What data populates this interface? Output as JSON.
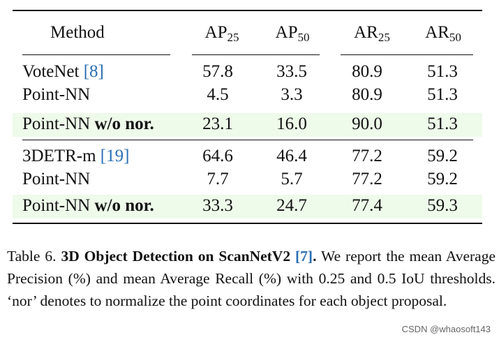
{
  "table": {
    "header": {
      "method": "Method",
      "ap25": {
        "base": "AP",
        "sub": "25"
      },
      "ap50": {
        "base": "AP",
        "sub": "50"
      },
      "ar25": {
        "base": "AR",
        "sub": "25"
      },
      "ar50": {
        "base": "AR",
        "sub": "50"
      }
    },
    "groups": [
      {
        "rows": [
          {
            "method": "VoteNet",
            "cite": "[8]",
            "ap25": "57.8",
            "ap50": "33.5",
            "ar25": "80.9",
            "ar50": "51.3"
          },
          {
            "method": "Point-NN",
            "ap25": "4.5",
            "ap50": "3.3",
            "ar25": "80.9",
            "ar50": "51.3"
          },
          {
            "method": "Point-NN",
            "method_bold": "w/o nor.",
            "ap25": "23.1",
            "ap50": "16.0",
            "ar25": "90.0",
            "ar50": "51.3"
          }
        ]
      },
      {
        "rows": [
          {
            "method": "3DETR-m",
            "cite": "[19]",
            "ap25": "64.6",
            "ap50": "46.4",
            "ar25": "77.2",
            "ar50": "59.2"
          },
          {
            "method": "Point-NN",
            "ap25": "7.7",
            "ap50": "5.7",
            "ar25": "77.2",
            "ar50": "59.2"
          },
          {
            "method": "Point-NN",
            "method_bold": "w/o nor.",
            "ap25": "33.3",
            "ap50": "24.7",
            "ar25": "77.4",
            "ar50": "59.3"
          }
        ]
      }
    ]
  },
  "caption": {
    "prefix": "Table 6.",
    "title": "3D Object Detection on ScanNetV2",
    "title_ref": "[7]",
    "title_end": ".",
    "body": "We report the mean Average Precision (%) and mean Average Recall (%) with 0.25 and 0.5 IoU thresholds. ‘nor’ denotes to normalize the point coordinates for each object proposal."
  },
  "watermark": "CSDN @whaosoft143",
  "colors": {
    "highlight": "#eefaea",
    "citation": "#2a6fb4"
  }
}
